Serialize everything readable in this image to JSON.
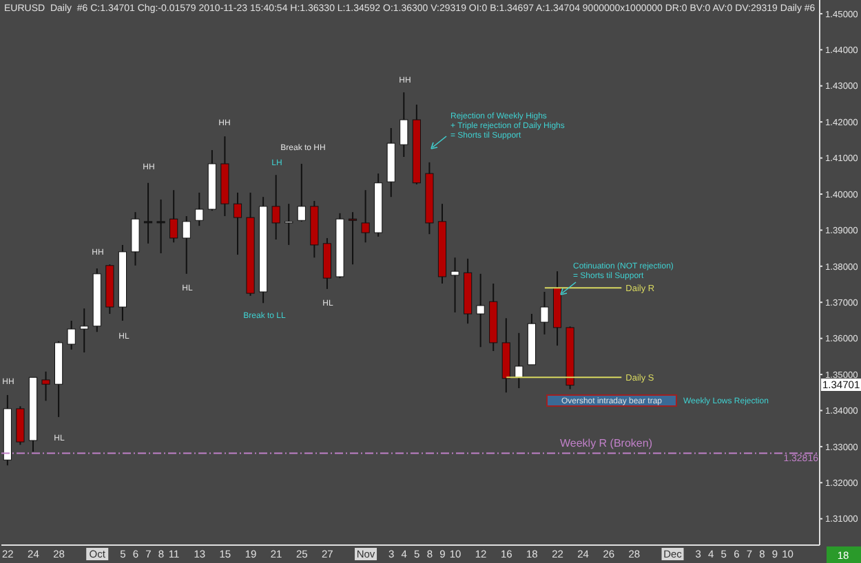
{
  "chart_data": {
    "type": "candlestick",
    "title": "EURUSD  Daily  #6 C:1.34701 Chg:-0.01579 2010-11-23 15:40:54 H:1.36330 L:1.34592 O:1.36300 V:29319 OI:0 B:1.34697 A:1.34704 9000000x1000000 DR:0 BV:0 AV:0 DV:29319 Daily #6",
    "categories": [
      "22",
      null,
      "24",
      null,
      "28",
      null,
      null,
      "Oct",
      null,
      "5",
      "6",
      "7",
      "8",
      "11",
      null,
      "13",
      null,
      "15",
      null,
      "19",
      null,
      "21",
      null,
      "25",
      null,
      "27",
      null,
      null,
      "Nov",
      null,
      "3",
      "4",
      "5",
      "8",
      "9",
      "10",
      null,
      "12",
      null,
      "16",
      null,
      "18",
      null,
      "22",
      null,
      "24",
      null,
      "26",
      null,
      "28",
      null,
      null,
      "Dec",
      null,
      "3",
      "4",
      "5",
      "6",
      "7",
      "8",
      "9",
      "10",
      null,
      null
    ],
    "ohlc": [
      [
        1.3263,
        1.3443,
        1.3248,
        1.3405
      ],
      [
        1.3405,
        1.3412,
        1.3305,
        1.3313
      ],
      [
        1.3317,
        1.3492,
        1.3286,
        1.3492
      ],
      [
        1.3485,
        1.3508,
        1.3427,
        1.3473
      ],
      [
        1.3473,
        1.3592,
        1.3382,
        1.3588
      ],
      [
        1.3584,
        1.3649,
        1.3569,
        1.3626
      ],
      [
        1.3626,
        1.3683,
        1.3561,
        1.3634
      ],
      [
        1.3634,
        1.3794,
        1.3618,
        1.3779
      ],
      [
        1.3802,
        1.3805,
        1.3668,
        1.3687
      ],
      [
        1.3687,
        1.3859,
        1.3649,
        1.384
      ],
      [
        1.384,
        1.395,
        1.3802,
        1.3931
      ],
      [
        1.3924,
        1.4031,
        1.3863,
        1.3924
      ],
      [
        1.3924,
        1.3985,
        1.3836,
        1.3924
      ],
      [
        1.3931,
        1.4011,
        1.3866,
        1.3878
      ],
      [
        1.3878,
        1.3939,
        1.3779,
        1.3924
      ],
      [
        1.3927,
        1.4004,
        1.3912,
        1.3958
      ],
      [
        1.3958,
        1.4122,
        1.3954,
        1.4084
      ],
      [
        1.4084,
        1.416,
        1.3939,
        1.3973
      ],
      [
        1.3973,
        1.4004,
        1.3832,
        1.3935
      ],
      [
        1.3935,
        1.4004,
        1.3718,
        1.3725
      ],
      [
        1.3729,
        1.3992,
        1.3698,
        1.3966
      ],
      [
        1.3966,
        1.4053,
        1.3874,
        1.392
      ],
      [
        1.3924,
        1.3973,
        1.3859,
        1.3924
      ],
      [
        1.3927,
        1.4084,
        1.3924,
        1.3966
      ],
      [
        1.3966,
        1.3981,
        1.3824,
        1.3859
      ],
      [
        1.3863,
        1.3878,
        1.3737,
        1.3767
      ],
      [
        1.3771,
        1.3947,
        1.3767,
        1.3931
      ],
      [
        1.3931,
        1.395,
        1.3805,
        1.3927
      ],
      [
        1.392,
        1.4011,
        1.3866,
        1.3893
      ],
      [
        1.3893,
        1.4057,
        1.3882,
        1.4031
      ],
      [
        1.4034,
        1.4183,
        1.3992,
        1.4141
      ],
      [
        1.4137,
        1.4282,
        1.4103,
        1.4206
      ],
      [
        1.4206,
        1.4248,
        1.4027,
        1.4031
      ],
      [
        1.4057,
        1.4088,
        1.3889,
        1.392
      ],
      [
        1.3924,
        1.3973,
        1.3752,
        1.3771
      ],
      [
        1.3775,
        1.3824,
        1.3672,
        1.3786
      ],
      [
        1.3782,
        1.3821,
        1.3641,
        1.3668
      ],
      [
        1.3668,
        1.3779,
        1.3576,
        1.3691
      ],
      [
        1.3702,
        1.3752,
        1.3565,
        1.3588
      ],
      [
        1.3588,
        1.3656,
        1.345,
        1.3489
      ],
      [
        1.3492,
        1.3615,
        1.3462,
        1.3523
      ],
      [
        1.3527,
        1.3668,
        1.3527,
        1.3641
      ],
      [
        1.3645,
        1.3729,
        1.3611,
        1.3687
      ],
      [
        1.374,
        1.3786,
        1.358,
        1.363
      ],
      [
        1.363,
        1.3633,
        1.34592,
        1.34701
      ],
      null,
      null,
      null,
      null,
      null,
      null,
      null,
      null,
      null,
      null,
      null,
      null,
      null,
      null,
      null,
      null,
      null,
      null,
      null
    ],
    "colors": [
      "#ffffff",
      "#b40000",
      "#ffffff",
      "#b40000",
      "#ffffff",
      "#ffffff",
      "#ffffff",
      "#ffffff",
      "#b40000",
      "#ffffff",
      "#ffffff",
      "#1a1a1a",
      "#1a1a1a",
      "#b40000",
      "#ffffff",
      "#ffffff",
      "#ffffff",
      "#b40000",
      "#b40000",
      "#b40000",
      "#ffffff",
      "#b40000",
      "#ffffff",
      "#ffffff",
      "#b40000",
      "#b40000",
      "#ffffff",
      "#5a0a0a",
      "#b40000",
      "#ffffff",
      "#ffffff",
      "#ffffff",
      "#b40000",
      "#b40000",
      "#b40000",
      "#ffffff",
      "#b40000",
      "#ffffff",
      "#b40000",
      "#b40000",
      "#ffffff",
      "#ffffff",
      "#ffffff",
      "#b40000",
      "#b40000",
      null,
      null,
      null,
      null,
      null,
      null,
      null,
      null,
      null,
      null,
      null,
      null,
      null,
      null,
      null,
      null,
      null,
      null,
      null
    ],
    "ylim": [
      1.3027,
      1.4538
    ],
    "yticks": [
      {
        "value": 1.31,
        "label": "1.31000"
      },
      {
        "value": 1.32,
        "label": "1.32000"
      },
      {
        "value": 1.33,
        "label": "1.33000"
      },
      {
        "value": 1.34,
        "label": "1.34000"
      },
      {
        "value": 1.35,
        "label": "1.35000"
      },
      {
        "value": 1.36,
        "label": "1.36000"
      },
      {
        "value": 1.37,
        "label": "1.37000"
      },
      {
        "value": 1.38,
        "label": "1.38000"
      },
      {
        "value": 1.39,
        "label": "1.39000"
      },
      {
        "value": 1.4,
        "label": "1.40000"
      },
      {
        "value": 1.41,
        "label": "1.41000"
      },
      {
        "value": 1.42,
        "label": "1.42000"
      },
      {
        "value": 1.43,
        "label": "1.43000"
      },
      {
        "value": 1.44,
        "label": "1.44000"
      },
      {
        "value": 1.45,
        "label": "1.45000"
      }
    ],
    "ref_lines": [
      {
        "axis": "y",
        "value": 1.374,
        "label": "Daily R",
        "color": "#d8d860"
      },
      {
        "axis": "y",
        "value": 1.3492,
        "label": "Daily S",
        "color": "#d8d860"
      },
      {
        "axis": "y",
        "value": 1.32816,
        "label": "Weekly R (Broken)",
        "color": "#c080c8",
        "line_style": "dashed"
      }
    ],
    "annotations": [
      "HH",
      "HL",
      "HH",
      "HL",
      "HH",
      "HL",
      "HH",
      "Break to LL",
      "LH",
      "Break to HH",
      "HL",
      "HH",
      "Rejection of Weekly Highs",
      "+ Triple rejection of Daily Highs",
      "= Shorts til Support",
      "Cotinuation (NOT rejection)",
      "= Shorts til Support",
      "Overshot intraday bear trap",
      "Weekly Lows Rejection",
      "18",
      "1.34701",
      "1.32816"
    ]
  }
}
